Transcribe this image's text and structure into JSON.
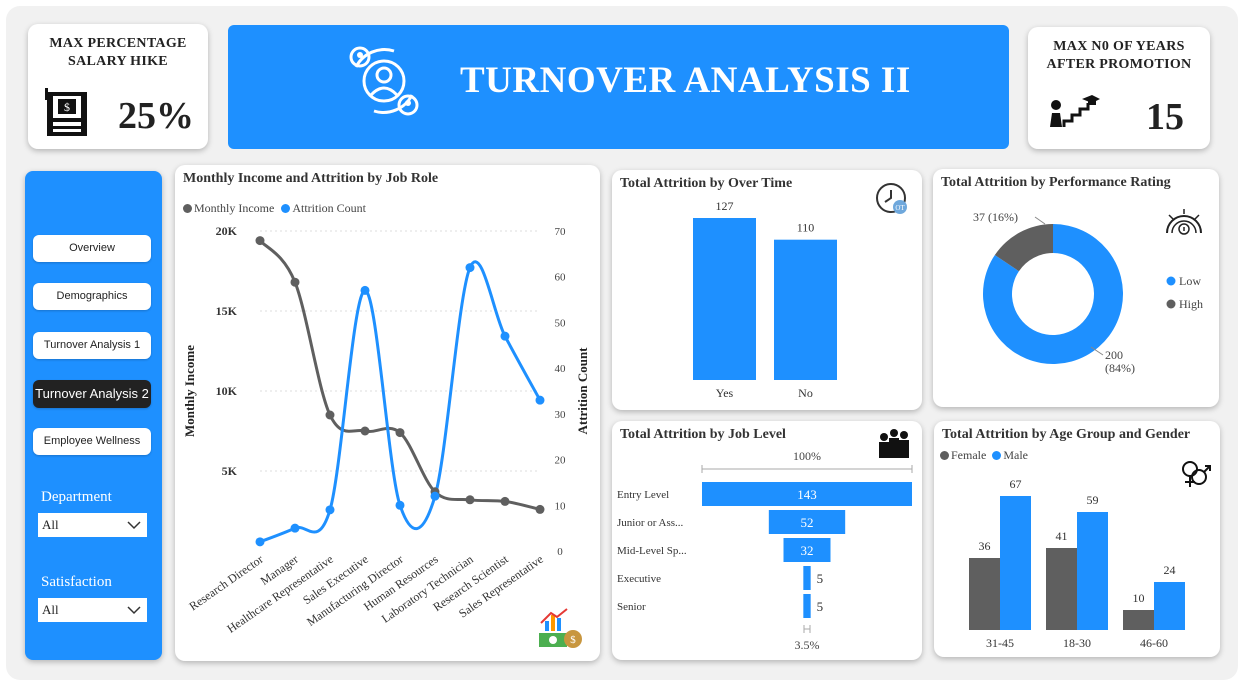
{
  "kpi_left": {
    "title_line1": "MAX PERCENTAGE",
    "title_line2": "SALARY HIKE",
    "value": "25%",
    "icon": "salary-machine-icon"
  },
  "banner": {
    "title": "TURNOVER ANALYSIS II",
    "icon": "people-circle-icon"
  },
  "kpi_right": {
    "title_line1": "MAX N0 OF YEARS",
    "title_line2": "AFTER PROMOTION",
    "value": "15",
    "icon": "promotion-stairs-icon"
  },
  "nav": {
    "items": [
      {
        "label": "Overview",
        "active": false
      },
      {
        "label": "Demographics",
        "active": false
      },
      {
        "label": "Turnover Analysis 1",
        "active": false
      },
      {
        "label": "Turnover Analysis 2",
        "active": true
      },
      {
        "label": "Employee Wellness",
        "active": false
      }
    ],
    "department_label": "Department",
    "department_value": "All",
    "satisfaction_label": "Satisfaction",
    "satisfaction_value": "All"
  },
  "colors": {
    "blue": "#1e90ff",
    "gray": "#5f5f5f",
    "dark": "#222222"
  },
  "chart_data": [
    {
      "type": "line",
      "title": "Monthly Income and Attrition by Job Role",
      "categories": [
        "Research Director",
        "Manager",
        "Healthcare Representative",
        "Sales Executive",
        "Manufacturing Director",
        "Human Resources",
        "Laboratory Technician",
        "Research Scientist",
        "Sales Representative"
      ],
      "series": [
        {
          "name": "Monthly Income",
          "axis": "left",
          "values": [
            19400,
            16800,
            8500,
            7500,
            7400,
            3700,
            3200,
            3100,
            2600
          ]
        },
        {
          "name": "Attrition Count",
          "axis": "right",
          "values": [
            2,
            5,
            9,
            57,
            10,
            12,
            62,
            47,
            33
          ]
        }
      ],
      "ylabel": "Monthly Income",
      "y2label": "Attrition Count",
      "ylim": [
        0,
        20000
      ],
      "y2lim": [
        0,
        70
      ],
      "yticks": [
        "5K",
        "10K",
        "15K",
        "20K"
      ],
      "y2ticks": [
        "0",
        "10",
        "20",
        "30",
        "40",
        "50",
        "60",
        "70"
      ],
      "icon": "chart-money-icon"
    },
    {
      "type": "bar",
      "title": "Total Attrition by Over Time",
      "categories": [
        "Yes",
        "No"
      ],
      "values": [
        127,
        110
      ],
      "icon": "overtime-clock-icon"
    },
    {
      "type": "pie",
      "title": "Total Attrition by Performance Rating",
      "slices": [
        {
          "name": "Low",
          "value": 200,
          "label": "200",
          "pct": "(84%)"
        },
        {
          "name": "High",
          "value": 37,
          "label": "37 (16%)"
        }
      ],
      "icon": "performance-gauge-icon"
    },
    {
      "type": "bar",
      "title": "Total Attrition by Job Level",
      "orientation": "funnel",
      "categories": [
        "Entry Level",
        "Junior or Ass...",
        "Mid-Level Sp...",
        "Executive",
        "Senior"
      ],
      "values": [
        143,
        52,
        32,
        5,
        5
      ],
      "top_pct": "100%",
      "bottom_pct": "3.5%",
      "icon": "team-icon"
    },
    {
      "type": "bar",
      "title": "Total Attrition by Age Group and Gender",
      "categories": [
        "31-45",
        "18-30",
        "46-60"
      ],
      "series": [
        {
          "name": "Female",
          "values": [
            36,
            41,
            10
          ]
        },
        {
          "name": "Male",
          "values": [
            67,
            59,
            24
          ]
        }
      ],
      "icon": "gender-icon"
    }
  ]
}
